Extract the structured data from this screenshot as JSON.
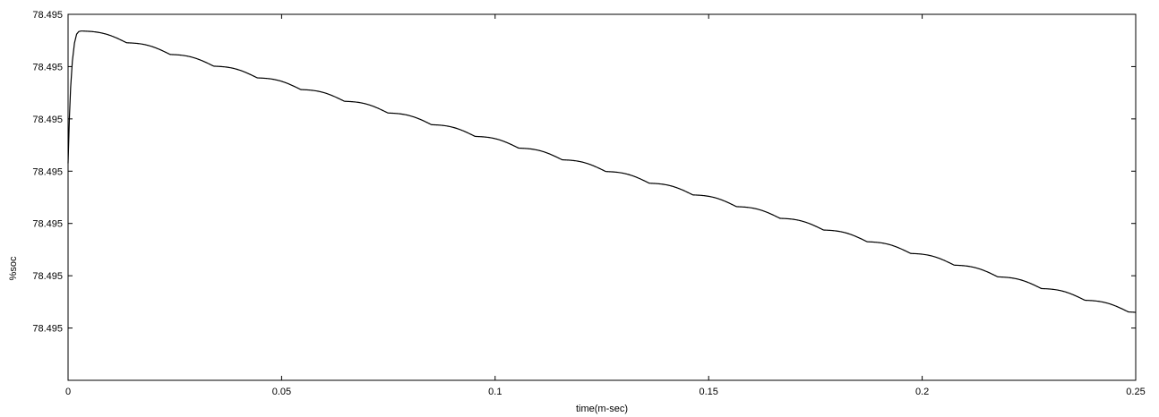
{
  "chart_data": {
    "type": "line",
    "title": "",
    "xlabel": "time(m-sec)",
    "ylabel": "%soc",
    "xlim": [
      0,
      0.25
    ],
    "ylim": [
      0,
      7
    ],
    "grid": false,
    "x_ticks": [
      0,
      0.05,
      0.1,
      0.15,
      0.2,
      0.25
    ],
    "x_tick_labels": [
      "0",
      "0.05",
      "0.1",
      "0.15",
      "0.2",
      "0.25"
    ],
    "y_ticks": [
      1,
      2,
      3,
      4,
      5,
      6,
      7
    ],
    "y_tick_labels": [
      "78.495",
      "78.495",
      "78.495",
      "78.495",
      "78.495",
      "78.495",
      "78.495"
    ],
    "line_color": "#000000",
    "series": [
      {
        "x": [
          0,
          0.0003,
          0.0006,
          0.001,
          0.0015,
          0.002,
          0.0025,
          0.003,
          0.0035
        ],
        "y": [
          4.15,
          5.0,
          5.6,
          6.1,
          6.45,
          6.62,
          6.67,
          6.68,
          6.68
        ]
      }
    ],
    "trend": {
      "start": [
        0.0035,
        6.68
      ],
      "end": [
        0.25,
        1.27
      ],
      "ripple_period": 0.0102,
      "ripple_depth": 0.06
    }
  }
}
